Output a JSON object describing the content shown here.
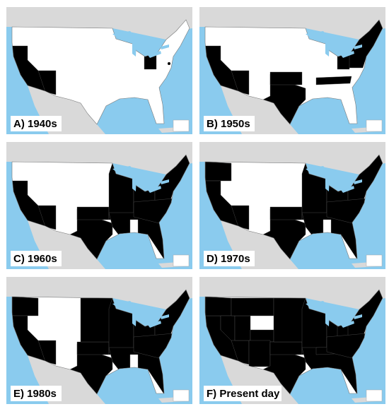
{
  "panels": [
    {
      "label": "A) 1940s"
    },
    {
      "label": "B) 1950s"
    },
    {
      "label": "C) 1960s"
    },
    {
      "label": "D) 1970s"
    },
    {
      "label": "E) 1980s"
    },
    {
      "label": "F) Present day"
    }
  ]
}
